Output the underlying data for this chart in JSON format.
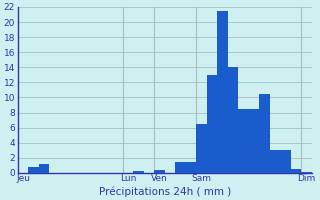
{
  "bar_values": [
    0,
    0.8,
    1.2,
    0,
    0,
    0,
    0,
    0,
    0,
    0,
    0,
    0.3,
    0,
    0.4,
    0,
    1.5,
    1.5,
    6.5,
    13,
    21.5,
    14,
    8.5,
    8.5,
    10.5,
    3,
    3,
    0.5,
    0.1
  ],
  "ylim": [
    0,
    22
  ],
  "yticks": [
    0,
    2,
    4,
    6,
    8,
    10,
    12,
    14,
    16,
    18,
    20,
    22
  ],
  "xlabel": "Précipitations 24h ( mm )",
  "bar_color": "#1a5ccc",
  "background_color": "#cef0f0",
  "grid_color": "#aabebe",
  "axis_color": "#3333aa",
  "tick_label_color": "#3333aa",
  "xlabel_color": "#3333aa",
  "day_labels": [
    "Jeu",
    "Lun",
    "Ven",
    "Sam",
    "Dim"
  ],
  "day_positions": [
    0.5,
    10.5,
    13.5,
    17.5,
    27.5
  ],
  "vline_positions": [
    10,
    13,
    17,
    27
  ],
  "num_bars": 28
}
